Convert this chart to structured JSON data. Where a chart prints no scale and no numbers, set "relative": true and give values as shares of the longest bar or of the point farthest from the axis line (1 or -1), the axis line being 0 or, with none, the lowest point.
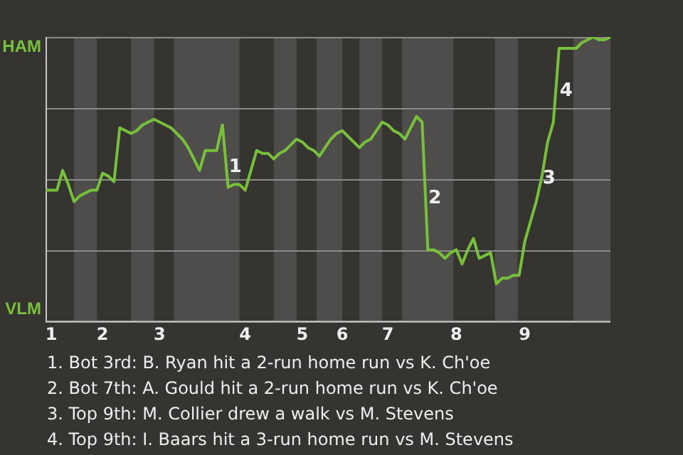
{
  "chart_data": {
    "type": "line",
    "categories": [
      null,
      "1",
      null,
      null,
      null,
      null,
      null,
      null,
      null,
      null,
      "2",
      null,
      null,
      null,
      null,
      null,
      null,
      null,
      null,
      null,
      "3",
      null,
      null,
      null,
      null,
      null,
      null,
      null,
      null,
      null,
      null,
      null,
      null,
      null,
      null,
      "4",
      null,
      null,
      null,
      null,
      null,
      null,
      null,
      null,
      null,
      "5",
      null,
      null,
      null,
      null,
      null,
      null,
      "6",
      null,
      null,
      null,
      null,
      null,
      null,
      null,
      "7",
      null,
      null,
      null,
      null,
      null,
      null,
      null,
      null,
      null,
      null,
      null,
      "8",
      null,
      null,
      null,
      null,
      null,
      null,
      null,
      null,
      null,
      null,
      null,
      "9",
      null,
      null,
      null,
      null,
      null,
      null,
      null,
      null,
      null,
      null,
      null,
      null,
      null,
      null,
      null
    ],
    "relative": true,
    "series": [
      {
        "color": "#77c13a",
        "values": [
          0.46,
          0.46,
          0.46,
          0.53,
          0.48,
          0.42,
          0.44,
          0.45,
          0.46,
          0.46,
          0.52,
          0.51,
          0.49,
          0.68,
          0.67,
          0.66,
          0.67,
          0.69,
          0.7,
          0.71,
          0.7,
          0.69,
          0.68,
          0.66,
          0.64,
          0.61,
          0.57,
          0.53,
          0.6,
          0.6,
          0.6,
          0.69,
          0.47,
          0.48,
          0.48,
          0.46,
          0.53,
          0.6,
          0.59,
          0.59,
          0.57,
          0.59,
          0.6,
          0.62,
          0.64,
          0.63,
          0.61,
          0.6,
          0.58,
          0.61,
          0.64,
          0.66,
          0.67,
          0.65,
          0.63,
          0.61,
          0.63,
          0.64,
          0.67,
          0.7,
          0.69,
          0.67,
          0.66,
          0.64,
          0.68,
          0.72,
          0.7,
          0.25,
          0.25,
          0.24,
          0.22,
          0.24,
          0.25,
          0.2,
          0.25,
          0.29,
          0.22,
          0.23,
          0.24,
          0.13,
          0.15,
          0.15,
          0.16,
          0.16,
          0.28,
          0.35,
          0.42,
          0.51,
          0.63,
          0.7,
          0.96,
          0.96,
          0.96,
          0.96,
          0.98,
          0.99,
          1,
          0.99,
          0.99,
          1
        ]
      }
    ],
    "grid": "y",
    "marker": "none",
    "annotations": [
      "HAM",
      "VLM",
      "1",
      "2",
      "3",
      "4",
      "1. Bot 3rd: B. Ryan hit a 2-run home run vs K. Ch'oe",
      "2. Bot 7th: A. Gould hit a 2-run home run vs K. Ch'oe",
      "3. Top 9th: M. Collier drew a walk vs M. Stevens",
      "4. Top 9th: I. Baars hit a 3-run home run vs M. Stevens"
    ]
  }
}
